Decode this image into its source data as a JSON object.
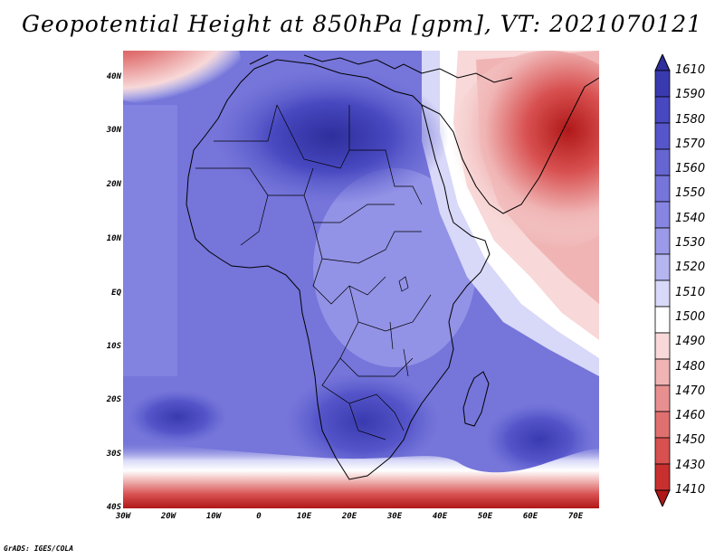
{
  "title": "Geopotential Height at 850hPa [gpm], VT: 2021070121",
  "credit": "GrADS: IGES/COLA",
  "map": {
    "variable": "Geopotential Height",
    "level": "850hPa",
    "units": "gpm",
    "valid_time": "2021070121",
    "lat_labels": [
      "40N",
      "30N",
      "20N",
      "10N",
      "EQ",
      "10S",
      "20S",
      "30S",
      "40S"
    ],
    "lon_labels": [
      "30W",
      "20W",
      "10W",
      "0",
      "10E",
      "20E",
      "30E",
      "40E",
      "50E",
      "60E",
      "70E"
    ],
    "lat_range": [
      -40,
      45
    ],
    "lon_range": [
      -30,
      75
    ],
    "field_summary": [
      {
        "region": "Sahara",
        "level": "high",
        "color": "#3b3bb8"
      },
      {
        "region": "Arabia / Middle East",
        "level": "low",
        "color": "#d84040"
      },
      {
        "region": "Southern Ocean 40S",
        "level": "low",
        "color": "#b81c1c"
      },
      {
        "region": "Mediterranean NW corner",
        "level": "low",
        "color": "#d84040"
      },
      {
        "region": "Southern Africa high",
        "level": "high",
        "color": "#3b3bb8"
      },
      {
        "region": "Indian Ocean 30S",
        "level": "high",
        "color": "#3b3bb8"
      }
    ]
  },
  "colorbar": {
    "labels": [
      "1610",
      "1590",
      "1580",
      "1570",
      "1560",
      "1550",
      "1540",
      "1530",
      "1520",
      "1510",
      "1500",
      "1490",
      "1480",
      "1470",
      "1460",
      "1450",
      "1430",
      "1410"
    ],
    "colors": [
      "#2e2e9c",
      "#3a3ab0",
      "#4848c0",
      "#5656ca",
      "#6666d2",
      "#7575da",
      "#8686e2",
      "#9a9ae8",
      "#b5b5f0",
      "#d8d8f8",
      "#ffffff",
      "#f8d8d8",
      "#f0b4b4",
      "#e89090",
      "#e07070",
      "#d85050",
      "#c83030",
      "#b01818"
    ]
  }
}
